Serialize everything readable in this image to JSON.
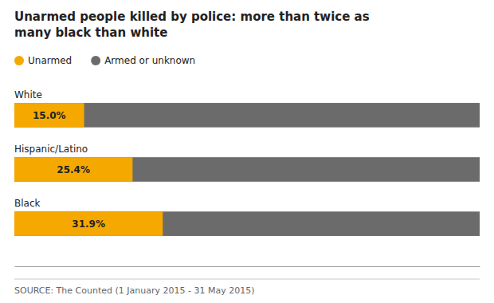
{
  "chart_data": {
    "type": "bar",
    "orientation": "horizontal",
    "title": [
      "Unarmed people killed by police: more than twice as",
      "many black than white"
    ],
    "categories": [
      "White",
      "Hispanic/Latino",
      "Black"
    ],
    "series": [
      {
        "name": "Unarmed",
        "color": "#F5A800",
        "values": [
          15.0,
          25.4,
          31.9
        ],
        "value_labels": [
          "15.0%",
          "25.4%",
          "31.9%"
        ],
        "data_labels": true
      },
      {
        "name": "Armed or unknown",
        "color": "#6B6B6B",
        "values": [
          100,
          100,
          100
        ]
      }
    ],
    "xlim": [
      0,
      100
    ],
    "tick_labels": false,
    "grid": false,
    "legend": "top",
    "source": "SOURCE: The Counted (1 January 2015 - 31 May 2015)"
  }
}
